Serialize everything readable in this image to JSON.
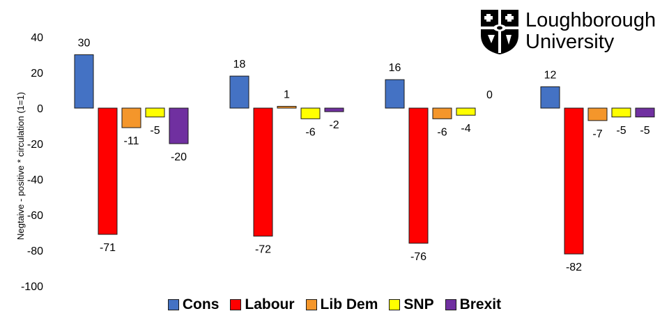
{
  "logo": {
    "name_line1": "Loughborough",
    "name_line2": "University"
  },
  "colors": {
    "Cons": "#4472c4",
    "Labour": "#ff0000",
    "Lib Dem": "#f4962b",
    "SNP": "#ffff00",
    "Brexit": "#7030a0"
  },
  "chart_data": {
    "type": "bar",
    "ylabel": "Negtaive - positive * circulation (1=1)",
    "ylim": [
      -100,
      40
    ],
    "yticks": [
      40,
      20,
      0,
      -20,
      -40,
      -60,
      -80,
      -100
    ],
    "legend_position": "bottom",
    "grid": false,
    "categories": [
      "",
      "",
      "",
      ""
    ],
    "series": [
      {
        "name": "Cons",
        "values": [
          30,
          18,
          16,
          12
        ]
      },
      {
        "name": "Labour",
        "values": [
          -71,
          -72,
          -76,
          -82
        ]
      },
      {
        "name": "Lib Dem",
        "values": [
          -11,
          1,
          -6,
          -7
        ]
      },
      {
        "name": "SNP",
        "values": [
          -5,
          -6,
          -4,
          -5
        ]
      },
      {
        "name": "Brexit",
        "values": [
          -20,
          -2,
          0,
          -5
        ]
      }
    ]
  }
}
